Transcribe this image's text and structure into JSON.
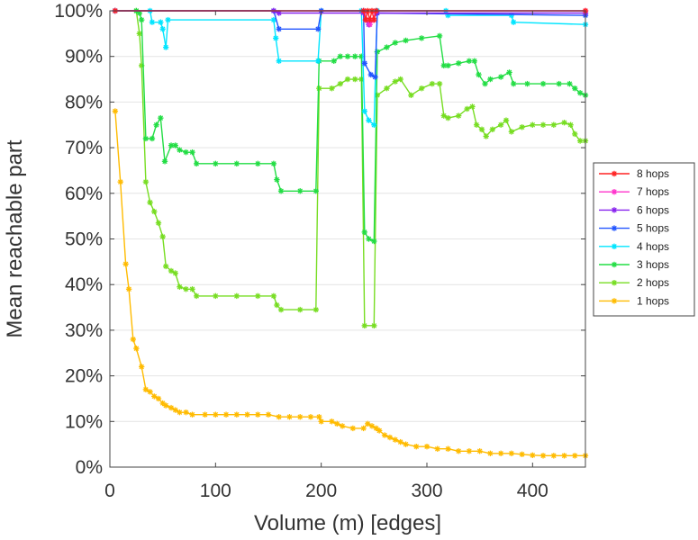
{
  "chart_data": {
    "type": "line",
    "title": "",
    "xlabel": "Volume (m) [edges]",
    "ylabel": "Mean reachable part",
    "xlim": [
      0,
      450
    ],
    "ylim": [
      0,
      100
    ],
    "x_ticks": [
      0,
      100,
      200,
      300,
      400
    ],
    "x_tick_labels": [
      "0",
      "100",
      "200",
      "300",
      "400"
    ],
    "y_ticks": [
      0,
      10,
      20,
      30,
      40,
      50,
      60,
      70,
      80,
      90,
      100
    ],
    "y_tick_labels": [
      "0%",
      "10%",
      "20%",
      "30%",
      "40%",
      "50%",
      "60%",
      "70%",
      "80%",
      "90%",
      "100%"
    ],
    "grid": "horizontal",
    "legend_position": "right",
    "legend_order": [
      "8 hops",
      "7 hops",
      "6 hops",
      "5 hops",
      "4 hops",
      "3 hops",
      "2 hops",
      "1 hops"
    ],
    "series": [
      {
        "name": "8 hops",
        "color": "#ff2222",
        "points": [
          [
            5,
            100
          ],
          [
            240,
            100
          ],
          [
            242,
            98
          ],
          [
            244,
            100
          ],
          [
            246,
            98
          ],
          [
            248,
            100
          ],
          [
            250,
            98
          ],
          [
            252,
            100
          ],
          [
            450,
            100
          ]
        ]
      },
      {
        "name": "7 hops",
        "color": "#ff33cc",
        "points": [
          [
            5,
            100
          ],
          [
            240,
            100
          ],
          [
            243,
            98
          ],
          [
            246,
            97
          ],
          [
            249,
            98
          ],
          [
            252,
            100
          ],
          [
            450,
            100
          ]
        ]
      },
      {
        "name": "6 hops",
        "color": "#8822ee",
        "points": [
          [
            5,
            100
          ],
          [
            155,
            100
          ],
          [
            160,
            99.5
          ],
          [
            240,
            99.5
          ],
          [
            245,
            97
          ],
          [
            252,
            99.5
          ],
          [
            450,
            99.5
          ]
        ]
      },
      {
        "name": "5 hops",
        "color": "#2255ff",
        "points": [
          [
            5,
            100
          ],
          [
            155,
            100
          ],
          [
            160,
            96
          ],
          [
            197,
            96
          ],
          [
            200,
            100
          ],
          [
            240,
            100
          ],
          [
            241,
            88.5
          ],
          [
            247,
            86
          ],
          [
            251,
            85.5
          ],
          [
            253,
            99.5
          ],
          [
            450,
            99
          ]
        ]
      },
      {
        "name": "4 hops",
        "color": "#00e5ff",
        "points": [
          [
            5,
            100
          ],
          [
            38,
            100
          ],
          [
            40,
            97.5
          ],
          [
            48,
            97.5
          ],
          [
            50,
            96
          ],
          [
            53,
            92
          ],
          [
            55,
            98
          ],
          [
            155,
            98
          ],
          [
            157,
            94
          ],
          [
            160,
            89
          ],
          [
            197,
            89
          ],
          [
            200,
            100
          ],
          [
            238,
            100
          ],
          [
            241,
            78
          ],
          [
            245,
            76
          ],
          [
            250,
            75
          ],
          [
            253,
            100
          ],
          [
            318,
            100
          ],
          [
            320,
            99
          ],
          [
            380,
            99
          ],
          [
            382,
            97.5
          ],
          [
            450,
            97
          ]
        ]
      },
      {
        "name": "3 hops",
        "color": "#22dd44",
        "points": [
          [
            5,
            100
          ],
          [
            25,
            100
          ],
          [
            28,
            99.5
          ],
          [
            30,
            98
          ],
          [
            34,
            72
          ],
          [
            40,
            72
          ],
          [
            44,
            75
          ],
          [
            48,
            76.5
          ],
          [
            52,
            67
          ],
          [
            58,
            70.5
          ],
          [
            62,
            70.5
          ],
          [
            66,
            69.5
          ],
          [
            72,
            69
          ],
          [
            78,
            69
          ],
          [
            82,
            66.5
          ],
          [
            100,
            66.5
          ],
          [
            120,
            66.5
          ],
          [
            140,
            66.5
          ],
          [
            155,
            66.5
          ],
          [
            158,
            63
          ],
          [
            162,
            60.5
          ],
          [
            180,
            60.5
          ],
          [
            195,
            60.5
          ],
          [
            198,
            89
          ],
          [
            212,
            89
          ],
          [
            218,
            90
          ],
          [
            225,
            90
          ],
          [
            232,
            90
          ],
          [
            238,
            90
          ],
          [
            241,
            51.5
          ],
          [
            245,
            50
          ],
          [
            250,
            49.5
          ],
          [
            253,
            91
          ],
          [
            262,
            92
          ],
          [
            270,
            93
          ],
          [
            280,
            93.5
          ],
          [
            295,
            94
          ],
          [
            312,
            94.5
          ],
          [
            316,
            88
          ],
          [
            320,
            88
          ],
          [
            330,
            88.5
          ],
          [
            340,
            89
          ],
          [
            345,
            89
          ],
          [
            349,
            86
          ],
          [
            355,
            84
          ],
          [
            360,
            85
          ],
          [
            370,
            85.5
          ],
          [
            378,
            86.5
          ],
          [
            382,
            84
          ],
          [
            395,
            84
          ],
          [
            410,
            84
          ],
          [
            425,
            84
          ],
          [
            435,
            84
          ],
          [
            440,
            83
          ],
          [
            445,
            82
          ],
          [
            450,
            81.5
          ]
        ]
      },
      {
        "name": "2 hops",
        "color": "#77dd22",
        "points": [
          [
            5,
            100
          ],
          [
            25,
            100
          ],
          [
            28,
            95
          ],
          [
            30,
            88
          ],
          [
            34,
            62.5
          ],
          [
            38,
            58
          ],
          [
            42,
            56
          ],
          [
            46,
            53.5
          ],
          [
            50,
            50.5
          ],
          [
            53,
            44
          ],
          [
            58,
            43
          ],
          [
            62,
            42.5
          ],
          [
            66,
            39.5
          ],
          [
            72,
            39
          ],
          [
            78,
            39
          ],
          [
            82,
            37.5
          ],
          [
            100,
            37.5
          ],
          [
            120,
            37.5
          ],
          [
            140,
            37.5
          ],
          [
            155,
            37.5
          ],
          [
            158,
            35.5
          ],
          [
            162,
            34.5
          ],
          [
            180,
            34.5
          ],
          [
            195,
            34.5
          ],
          [
            198,
            83
          ],
          [
            210,
            83
          ],
          [
            218,
            84
          ],
          [
            225,
            85
          ],
          [
            232,
            85
          ],
          [
            238,
            85
          ],
          [
            241,
            31
          ],
          [
            250,
            31
          ],
          [
            253,
            81.5
          ],
          [
            262,
            83
          ],
          [
            270,
            84.5
          ],
          [
            275,
            85
          ],
          [
            285,
            81.5
          ],
          [
            295,
            83
          ],
          [
            305,
            84
          ],
          [
            312,
            84
          ],
          [
            316,
            77
          ],
          [
            320,
            76.5
          ],
          [
            330,
            77
          ],
          [
            338,
            78.5
          ],
          [
            343,
            79
          ],
          [
            347,
            75
          ],
          [
            352,
            74
          ],
          [
            356,
            72.5
          ],
          [
            362,
            74
          ],
          [
            370,
            75
          ],
          [
            375,
            76
          ],
          [
            380,
            73.5
          ],
          [
            390,
            74.5
          ],
          [
            400,
            75
          ],
          [
            410,
            75
          ],
          [
            420,
            75
          ],
          [
            430,
            75.5
          ],
          [
            436,
            75
          ],
          [
            440,
            73
          ],
          [
            445,
            71.5
          ],
          [
            450,
            71.5
          ]
        ]
      },
      {
        "name": "1 hops",
        "color": "#ffbb00",
        "points": [
          [
            5,
            78
          ],
          [
            10,
            62.5
          ],
          [
            15,
            44.5
          ],
          [
            18,
            39
          ],
          [
            22,
            28
          ],
          [
            25,
            26
          ],
          [
            30,
            22
          ],
          [
            34,
            17
          ],
          [
            38,
            16.5
          ],
          [
            42,
            15.5
          ],
          [
            46,
            15
          ],
          [
            50,
            14
          ],
          [
            53,
            13.5
          ],
          [
            58,
            13
          ],
          [
            62,
            12.5
          ],
          [
            66,
            12
          ],
          [
            72,
            12
          ],
          [
            78,
            11.5
          ],
          [
            90,
            11.5
          ],
          [
            100,
            11.5
          ],
          [
            110,
            11.5
          ],
          [
            120,
            11.5
          ],
          [
            130,
            11.5
          ],
          [
            140,
            11.5
          ],
          [
            150,
            11.5
          ],
          [
            160,
            11
          ],
          [
            170,
            11
          ],
          [
            180,
            11
          ],
          [
            190,
            11
          ],
          [
            198,
            11
          ],
          [
            200,
            10
          ],
          [
            210,
            10
          ],
          [
            215,
            9.5
          ],
          [
            220,
            9
          ],
          [
            230,
            8.5
          ],
          [
            240,
            8.5
          ],
          [
            244,
            9.5
          ],
          [
            248,
            9
          ],
          [
            252,
            8.5
          ],
          [
            255,
            8
          ],
          [
            260,
            7
          ],
          [
            265,
            6.5
          ],
          [
            270,
            6
          ],
          [
            275,
            5.5
          ],
          [
            280,
            5
          ],
          [
            290,
            4.5
          ],
          [
            300,
            4.5
          ],
          [
            310,
            4
          ],
          [
            320,
            4
          ],
          [
            330,
            3.5
          ],
          [
            340,
            3.5
          ],
          [
            350,
            3.5
          ],
          [
            360,
            3
          ],
          [
            370,
            3
          ],
          [
            380,
            3
          ],
          [
            390,
            2.8
          ],
          [
            400,
            2.6
          ],
          [
            410,
            2.5
          ],
          [
            420,
            2.5
          ],
          [
            430,
            2.5
          ],
          [
            440,
            2.5
          ],
          [
            450,
            2.5
          ]
        ]
      }
    ]
  }
}
